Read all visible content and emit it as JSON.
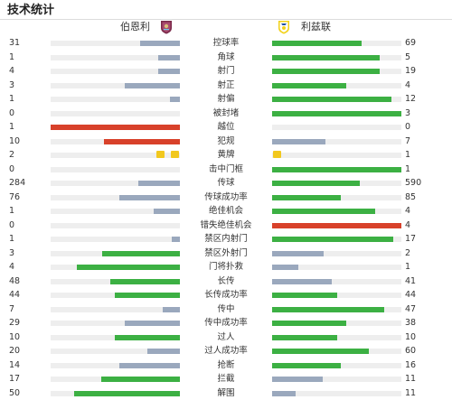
{
  "header": {
    "title": "技术统计",
    "home_team": "伯恩利",
    "away_team": "利兹联",
    "home_crest_icon": "burnley-crest-icon",
    "away_crest_icon": "leeds-united-crest-icon"
  },
  "colors": {
    "grey": "#9aa8bd",
    "green": "#3cb043",
    "red": "#d8412a",
    "yellow": "#f2c81e",
    "track": "#eeeeee"
  },
  "stats": [
    {
      "label": "控球率",
      "home": "31",
      "away": "69",
      "home_fill": 0.31,
      "away_fill": 0.69,
      "home_color": "grey",
      "away_color": "green"
    },
    {
      "label": "角球",
      "home": "1",
      "away": "5",
      "home_fill": 0.17,
      "away_fill": 0.83,
      "home_color": "grey",
      "away_color": "green"
    },
    {
      "label": "射门",
      "home": "4",
      "away": "19",
      "home_fill": 0.17,
      "away_fill": 0.83,
      "home_color": "grey",
      "away_color": "green"
    },
    {
      "label": "射正",
      "home": "3",
      "away": "4",
      "home_fill": 0.43,
      "away_fill": 0.57,
      "home_color": "grey",
      "away_color": "green"
    },
    {
      "label": "射偏",
      "home": "1",
      "away": "12",
      "home_fill": 0.08,
      "away_fill": 0.92,
      "home_color": "grey",
      "away_color": "green"
    },
    {
      "label": "被封堵",
      "home": "0",
      "away": "3",
      "home_fill": 0,
      "away_fill": 1,
      "home_color": "grey",
      "away_color": "green"
    },
    {
      "label": "越位",
      "home": "1",
      "away": "0",
      "home_fill": 1,
      "away_fill": 0,
      "home_color": "red",
      "away_color": "grey"
    },
    {
      "label": "犯规",
      "home": "10",
      "away": "7",
      "home_fill": 0.59,
      "away_fill": 0.41,
      "home_color": "red",
      "away_color": "grey"
    },
    {
      "label": "黄牌",
      "home": "2",
      "away": "1",
      "home_fill": 0,
      "away_fill": 0,
      "home_color": "grey",
      "away_color": "grey",
      "home_cards": 2,
      "away_cards": 1
    },
    {
      "label": "击中门框",
      "home": "0",
      "away": "1",
      "home_fill": 0,
      "away_fill": 1,
      "home_color": "grey",
      "away_color": "green"
    },
    {
      "label": "传球",
      "home": "284",
      "away": "590",
      "home_fill": 0.32,
      "away_fill": 0.68,
      "home_color": "grey",
      "away_color": "green"
    },
    {
      "label": "传球成功率",
      "home": "76",
      "away": "85",
      "home_fill": 0.47,
      "away_fill": 0.53,
      "home_color": "grey",
      "away_color": "green"
    },
    {
      "label": "绝佳机会",
      "home": "1",
      "away": "4",
      "home_fill": 0.2,
      "away_fill": 0.8,
      "home_color": "grey",
      "away_color": "green"
    },
    {
      "label": "错失绝佳机会",
      "home": "0",
      "away": "4",
      "home_fill": 0,
      "away_fill": 1,
      "home_color": "grey",
      "away_color": "red"
    },
    {
      "label": "禁区内射门",
      "home": "1",
      "away": "17",
      "home_fill": 0.06,
      "away_fill": 0.94,
      "home_color": "grey",
      "away_color": "green"
    },
    {
      "label": "禁区外射门",
      "home": "3",
      "away": "2",
      "home_fill": 0.6,
      "away_fill": 0.4,
      "home_color": "green",
      "away_color": "grey"
    },
    {
      "label": "门将扑救",
      "home": "4",
      "away": "1",
      "home_fill": 0.8,
      "away_fill": 0.2,
      "home_color": "green",
      "away_color": "grey"
    },
    {
      "label": "长传",
      "home": "48",
      "away": "41",
      "home_fill": 0.54,
      "away_fill": 0.46,
      "home_color": "green",
      "away_color": "grey"
    },
    {
      "label": "长传成功率",
      "home": "44",
      "away": "44",
      "home_fill": 0.5,
      "away_fill": 0.5,
      "home_color": "green",
      "away_color": "green"
    },
    {
      "label": "传中",
      "home": "7",
      "away": "47",
      "home_fill": 0.13,
      "away_fill": 0.87,
      "home_color": "grey",
      "away_color": "green"
    },
    {
      "label": "传中成功率",
      "home": "29",
      "away": "38",
      "home_fill": 0.43,
      "away_fill": 0.57,
      "home_color": "grey",
      "away_color": "green"
    },
    {
      "label": "过人",
      "home": "10",
      "away": "10",
      "home_fill": 0.5,
      "away_fill": 0.5,
      "home_color": "green",
      "away_color": "green"
    },
    {
      "label": "过人成功率",
      "home": "20",
      "away": "60",
      "home_fill": 0.25,
      "away_fill": 0.75,
      "home_color": "grey",
      "away_color": "green"
    },
    {
      "label": "抢断",
      "home": "14",
      "away": "16",
      "home_fill": 0.47,
      "away_fill": 0.53,
      "home_color": "grey",
      "away_color": "green"
    },
    {
      "label": "拦截",
      "home": "17",
      "away": "11",
      "home_fill": 0.61,
      "away_fill": 0.39,
      "home_color": "green",
      "away_color": "grey"
    },
    {
      "label": "解围",
      "home": "50",
      "away": "11",
      "home_fill": 0.82,
      "away_fill": 0.18,
      "home_color": "green",
      "away_color": "grey"
    }
  ]
}
